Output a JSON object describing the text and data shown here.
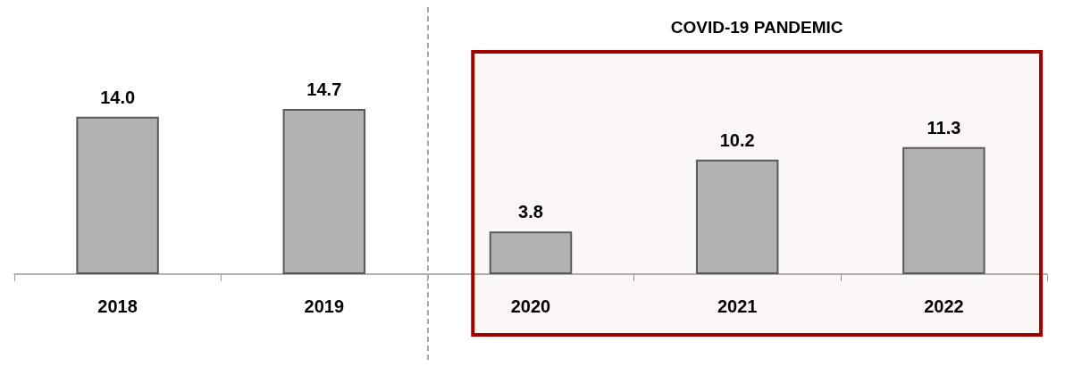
{
  "chart_data": {
    "type": "bar",
    "categories": [
      "2018",
      "2019",
      "2020",
      "2021",
      "2022"
    ],
    "values": [
      14.0,
      14.7,
      3.8,
      10.2,
      11.3
    ],
    "color": "#b2b2b2",
    "data_labels": true,
    "value_labels": [
      "14.0",
      "14.7",
      "3.8",
      "10.2",
      "11.3"
    ],
    "bands": [
      {
        "axis": "x",
        "from": "2020",
        "to": "2022",
        "label": "COVID-19 PANDEMIC",
        "color": "#a00000"
      }
    ],
    "grid": false
  }
}
